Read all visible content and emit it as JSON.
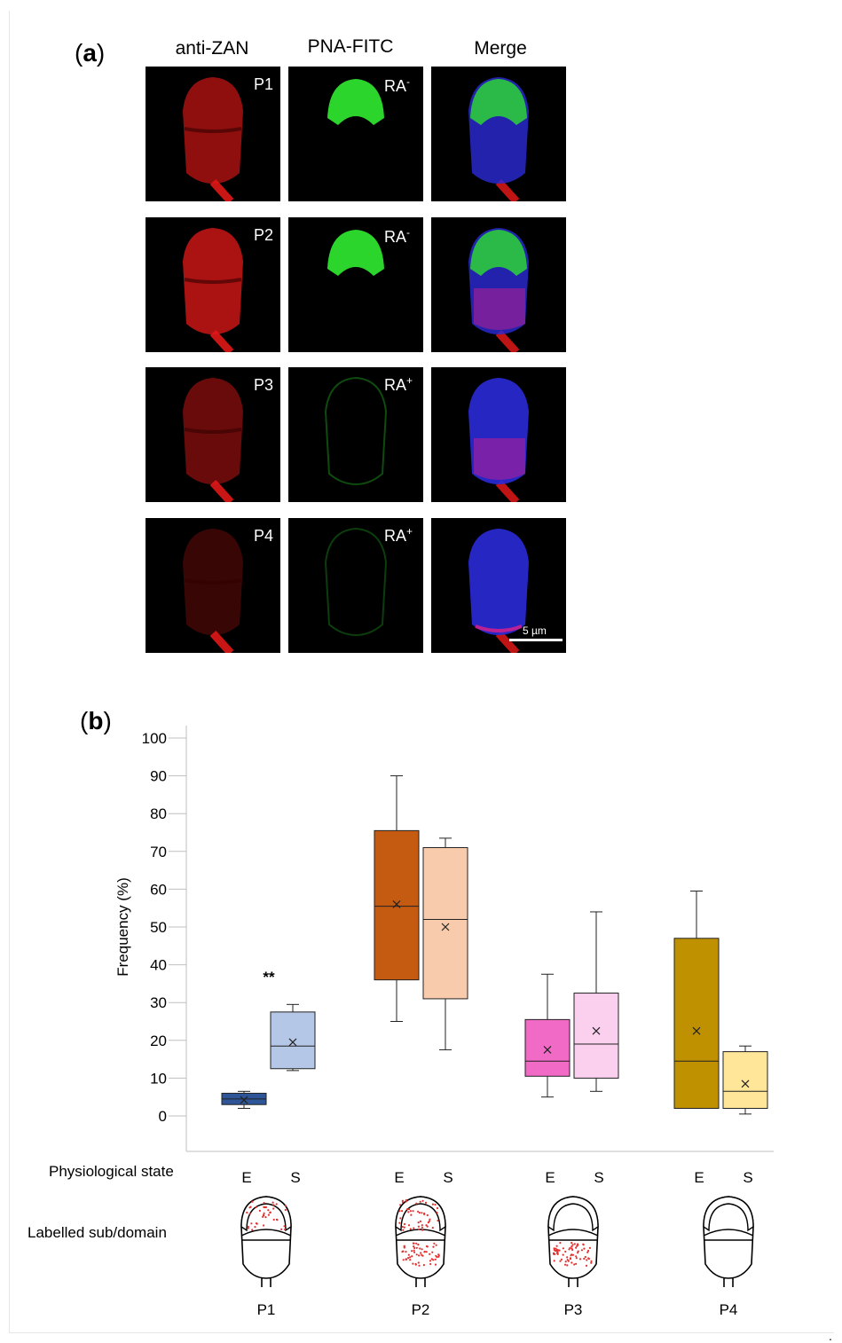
{
  "panel_a": {
    "letter": "a",
    "columns": [
      "anti-ZAN",
      "PNA-FITC",
      "Merge"
    ],
    "rows": [
      {
        "pattern": "P1",
        "ra": "RA",
        "ra_sign": "-"
      },
      {
        "pattern": "P2",
        "ra": "RA",
        "ra_sign": "-"
      },
      {
        "pattern": "P3",
        "ra": "RA",
        "ra_sign": "+"
      },
      {
        "pattern": "P4",
        "ra": "RA",
        "ra_sign": "+"
      }
    ],
    "scale_bar": "5 µm",
    "colors": {
      "anti_zan": "#e01818",
      "pna_fitc": "#2ee02e",
      "dapi": "#2a2ad8"
    }
  },
  "panel_b": {
    "letter": "b",
    "physiological_state_label": "Physiological state",
    "labelled_domain_label": "Labelled sub/domain",
    "significance": "**",
    "patterns": [
      "P1",
      "P2",
      "P3",
      "P4"
    ],
    "states": [
      "E",
      "S"
    ]
  },
  "chart_data": {
    "type": "box",
    "ylabel": "Frequency (%)",
    "xlabel": "",
    "ylim": [
      0,
      100
    ],
    "yticks": [
      0,
      10,
      20,
      30,
      40,
      50,
      60,
      70,
      80,
      90,
      100
    ],
    "groups": [
      "P1",
      "P2",
      "P3",
      "P4"
    ],
    "boxes": [
      {
        "group": "P1",
        "state": "E",
        "min": 2,
        "q1": 3,
        "median": 4.5,
        "q3": 6,
        "max": 6.5,
        "mean": 4.2,
        "color": "#2e5597"
      },
      {
        "group": "P1",
        "state": "S",
        "min": 12,
        "q1": 12.5,
        "median": 18.5,
        "q3": 27.5,
        "max": 29.5,
        "mean": 19.5,
        "color": "#b4c7e7"
      },
      {
        "group": "P2",
        "state": "E",
        "min": 25,
        "q1": 36,
        "median": 55.5,
        "q3": 75.5,
        "max": 90,
        "mean": 56,
        "color": "#c55a11"
      },
      {
        "group": "P2",
        "state": "S",
        "min": 17.5,
        "q1": 31,
        "median": 52,
        "q3": 71,
        "max": 73.5,
        "mean": 50,
        "color": "#f8cbad"
      },
      {
        "group": "P3",
        "state": "E",
        "min": 5,
        "q1": 10.5,
        "median": 14.5,
        "q3": 25.5,
        "max": 37.5,
        "mean": 17.5,
        "color": "#f06ac6"
      },
      {
        "group": "P3",
        "state": "S",
        "min": 6.5,
        "q1": 10,
        "median": 19,
        "q3": 32.5,
        "max": 54,
        "mean": 22.5,
        "color": "#fbcfee"
      },
      {
        "group": "P4",
        "state": "E",
        "min": 2,
        "q1": 2,
        "median": 14.5,
        "q3": 47,
        "max": 59.5,
        "mean": 22.5,
        "color": "#bf9000"
      },
      {
        "group": "P4",
        "state": "S",
        "min": 0.5,
        "q1": 2,
        "median": 6.5,
        "q3": 17,
        "max": 18.5,
        "mean": 8.5,
        "color": "#ffe699"
      }
    ]
  }
}
